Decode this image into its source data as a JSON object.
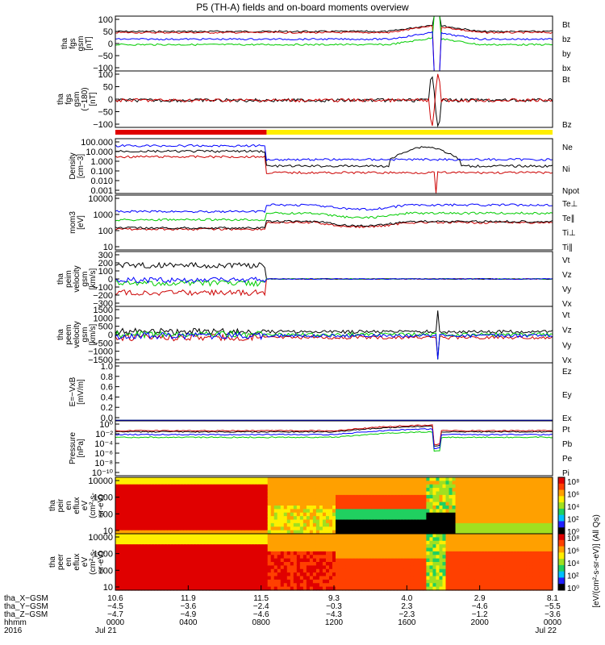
{
  "title": "P5 (TH-A) fields and on-board moments overview",
  "panels": [
    {
      "id": "fgs",
      "ylabel": [
        "tha",
        "fgs",
        "gsm",
        "[nT]"
      ],
      "ticks": [
        "100",
        "50",
        "0",
        "−50",
        "−100"
      ],
      "legend": [
        {
          "text": "Bt",
          "color": "#000000"
        },
        {
          "text": "bz",
          "color": "#cc0000"
        },
        {
          "text": "by",
          "color": "#00cc00"
        },
        {
          "text": "bx",
          "color": "#0000ff"
        }
      ]
    },
    {
      "id": "fgs2",
      "ylabel": [
        "tha",
        "fgs",
        "gsm",
        "(−180)",
        "[nT]"
      ],
      "ticks": [
        "100",
        "50",
        "0",
        "−50",
        "−100"
      ],
      "legend": [
        {
          "text": "Bt",
          "color": "#000000"
        },
        {
          "text": "Bz",
          "color": "#cc0000"
        }
      ]
    },
    {
      "id": "density",
      "ylabel": [
        "Density",
        "[cm−3]"
      ],
      "ticks": [
        "100.000",
        "10.000",
        "1.000",
        "0.100",
        "0.010",
        "0.001"
      ],
      "legend": [
        {
          "text": "Ne",
          "color": "#cc0000"
        },
        {
          "text": "Ni",
          "color": "#000000"
        },
        {
          "text": "Npot",
          "color": "#0000ff"
        }
      ]
    },
    {
      "id": "temp",
      "ylabel": [
        "mom3",
        "[eV]"
      ],
      "ticks": [
        "10000",
        "1000",
        "100",
        "10"
      ],
      "legend": [
        {
          "text": "Te⊥",
          "color": "#cc0000"
        },
        {
          "text": "Te∥",
          "color": "#000000"
        },
        {
          "text": "Ti⊥",
          "color": "#0000ff"
        },
        {
          "text": "Ti∥",
          "color": "#00cc00"
        }
      ]
    },
    {
      "id": "peim",
      "ylabel": [
        "tha",
        "peim",
        "velocity",
        "gsm",
        "[km/s]"
      ],
      "ticks": [
        "300",
        "200",
        "100",
        "0",
        "−100",
        "−200",
        "−300"
      ],
      "legend": [
        {
          "text": "Vt",
          "color": "#000000"
        },
        {
          "text": "Vz",
          "color": "#cc0000"
        },
        {
          "text": "Vy",
          "color": "#00cc00"
        },
        {
          "text": "Vx",
          "color": "#0000ff"
        }
      ]
    },
    {
      "id": "peem",
      "ylabel": [
        "tha",
        "peem",
        "velocity",
        "gsm",
        "[km/s]"
      ],
      "ticks": [
        "1500",
        "1000",
        "500",
        "0",
        "−500",
        "−1000",
        "−1500"
      ],
      "legend": [
        {
          "text": "Vt",
          "color": "#000000"
        },
        {
          "text": "Vz",
          "color": "#cc0000"
        },
        {
          "text": "Vy",
          "color": "#00cc00"
        },
        {
          "text": "Vx",
          "color": "#0000ff"
        }
      ]
    },
    {
      "id": "efield",
      "ylabel": [
        "E=−VxB",
        "[mV/m]"
      ],
      "ticks": [
        "1.0",
        "0.8",
        "0.6",
        "0.4",
        "0.2",
        "0.0"
      ],
      "legend": [
        {
          "text": "Ez",
          "color": "#cc0000"
        },
        {
          "text": "Ey",
          "color": "#00cc00"
        },
        {
          "text": "Ex",
          "color": "#0000ff"
        }
      ]
    },
    {
      "id": "pressure",
      "ylabel": [
        "Pressure",
        "[nPa]"
      ],
      "ticks": [
        "10⁰",
        "10⁻²",
        "10⁻⁴",
        "10⁻⁶",
        "10⁻⁸",
        "10⁻¹⁰"
      ],
      "legend": [
        {
          "text": "Pt",
          "color": "#000000"
        },
        {
          "text": "Pb",
          "color": "#cc0000"
        },
        {
          "text": "Pe",
          "color": "#00cc00"
        },
        {
          "text": "Pi",
          "color": "#0000ff"
        }
      ]
    },
    {
      "id": "peir",
      "ylabel": [
        "tha",
        "peir",
        "en",
        "eflux",
        "eV",
        "(cm²-s-",
        "sr-eV)"
      ],
      "ticks": [
        "10000",
        "1000",
        "100",
        "10"
      ]
    },
    {
      "id": "peer",
      "ylabel": [
        "tha",
        "peer",
        "en",
        "eflux",
        "eV",
        "(cm²-s-",
        "sr-eV)"
      ],
      "ticks": [
        "10000",
        "1000",
        "100",
        "10"
      ]
    }
  ],
  "colorbar_label": "[eV/(cm²-s-sr-eV)] (All Qs)",
  "colorbar_ticks_top": [
    "10⁸",
    "10⁶",
    "10⁴",
    "10²",
    "10⁰"
  ],
  "colorbar_ticks_bottom": [
    "10⁸",
    "10⁶",
    "10⁴",
    "10²",
    "10⁰"
  ],
  "x_axis": {
    "rows": [
      {
        "label": "tha_X−GSM",
        "values": [
          "10.6",
          "11.9",
          "11.5",
          "9.3",
          "4.0",
          "2.9",
          "8.1"
        ]
      },
      {
        "label": "tha_Y−GSM",
        "values": [
          "−4.5",
          "−3.6",
          "−2.4",
          "−0.3",
          "2.3",
          "−4.6",
          "−5.5"
        ]
      },
      {
        "label": "tha_Z−GSM",
        "values": [
          "−4.7",
          "−4.9",
          "−4.6",
          "−4.3",
          "−2.3",
          "−1.2",
          "−3.6"
        ]
      },
      {
        "label": "hhmm",
        "values": [
          "0000",
          "0400",
          "0800",
          "1200",
          "1600",
          "2000",
          "0000"
        ]
      },
      {
        "label": "2016",
        "values": [
          "Jul 21",
          "",
          "",
          "",
          "",
          "",
          "Jul 22"
        ]
      }
    ]
  },
  "chart_data": {
    "type": "line",
    "title": "P5 (TH-A) fields and on-board moments overview",
    "x_range": [
      "2016-07-21 00:00",
      "2016-07-22 00:00"
    ],
    "series": [
      {
        "name": "Bt",
        "x_hours": [
          0,
          4,
          8,
          12,
          16,
          17.5,
          18,
          20,
          24
        ],
        "values": [
          40,
          45,
          48,
          50,
          70,
          100,
          100,
          60,
          45
        ]
      },
      {
        "name": "bz",
        "x_hours": [
          0,
          4,
          8,
          12,
          16,
          17.5,
          18,
          20,
          24
        ],
        "values": [
          30,
          35,
          40,
          45,
          65,
          100,
          100,
          55,
          40
        ]
      },
      {
        "name": "by",
        "x_hours": [
          0,
          4,
          8,
          12,
          16,
          17.5,
          18,
          20,
          24
        ],
        "values": [
          -5,
          -8,
          -10,
          -8,
          -5,
          -100,
          100,
          10,
          5
        ]
      },
      {
        "name": "bx",
        "x_hours": [
          0,
          4,
          8,
          12,
          16,
          17.5,
          18,
          20,
          24
        ],
        "values": [
          20,
          15,
          12,
          10,
          15,
          100,
          -100,
          30,
          25
        ]
      },
      {
        "name": "Ne",
        "x_hours": [
          0,
          4,
          8,
          8.5,
          12,
          16,
          17.6,
          18.5,
          20,
          24
        ],
        "values": [
          10,
          10,
          8,
          0.2,
          0.2,
          0.3,
          0.001,
          1,
          0.3,
          0.3
        ]
      },
      {
        "name": "Ni",
        "x_hours": [
          0,
          4,
          8,
          8.5,
          12,
          16,
          17.6,
          18.5,
          20,
          24
        ],
        "values": [
          15,
          12,
          10,
          0.5,
          0.6,
          5,
          60,
          10,
          0.8,
          0.6
        ]
      },
      {
        "name": "Npot",
        "x_hours": [
          0,
          4,
          8,
          8.5,
          12,
          16,
          17.6,
          18.5,
          20,
          24
        ],
        "values": [
          30,
          25,
          20,
          3,
          5,
          20,
          40,
          15,
          3,
          2
        ]
      },
      {
        "name": "Vt (peem)",
        "x_hours": [
          0,
          4,
          8,
          12,
          16,
          17.8,
          20,
          24
        ],
        "values": [
          200,
          150,
          100,
          50,
          50,
          1500,
          50,
          40
        ]
      }
    ]
  }
}
